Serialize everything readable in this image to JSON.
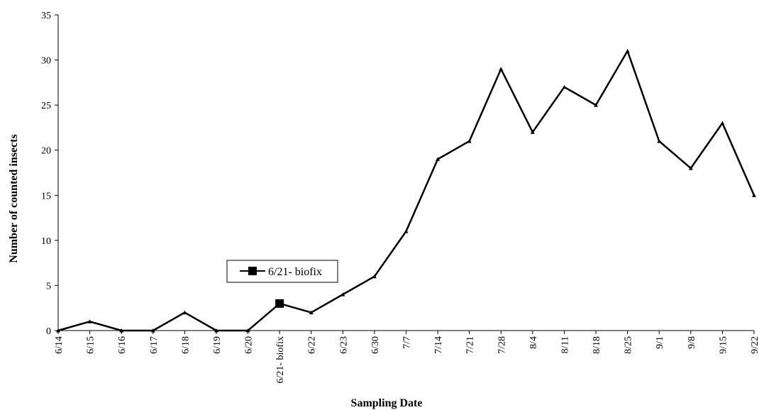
{
  "chart_data": {
    "type": "line",
    "xlabel": "Sampling Date",
    "ylabel": "Number of counted insects",
    "ylim": [
      0,
      35
    ],
    "yticks": [
      0,
      5,
      10,
      15,
      20,
      25,
      30,
      35
    ],
    "grid": false,
    "legend_position": "center",
    "categories": [
      "6/14",
      "6/15",
      "6/16",
      "6/17",
      "6/18",
      "6/19",
      "6/20",
      "6/21- biofix",
      "6/22",
      "6/23",
      "6/30",
      "7/7",
      "7/14",
      "7/21",
      "7/28",
      "8/4",
      "8/11",
      "8/18",
      "8/25",
      "9/1",
      "9/8",
      "9/15",
      "9/22"
    ],
    "series": [
      {
        "values": [
          0,
          1,
          0,
          0,
          2,
          0,
          0,
          3,
          2,
          4,
          6,
          11,
          19,
          21,
          29,
          22,
          27,
          25,
          31,
          21,
          18,
          23,
          15
        ],
        "color": "#000000",
        "marker": "triangle"
      }
    ],
    "highlight": {
      "name": "6/21- biofix",
      "category_index": 7,
      "value": 3,
      "marker": "square",
      "color": "#000000"
    }
  }
}
